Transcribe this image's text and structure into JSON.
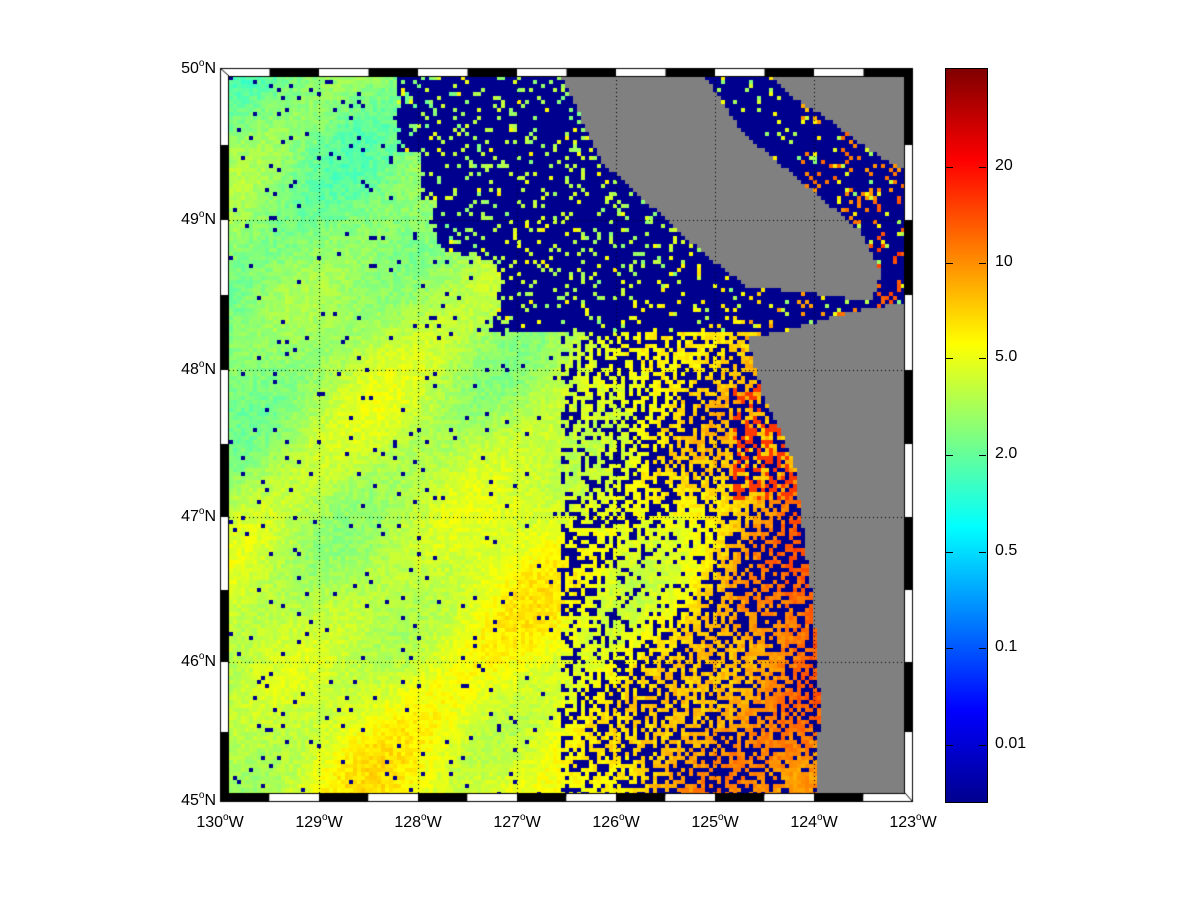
{
  "map": {
    "lat_labels": [
      {
        "deg": "50",
        "hemi": "N"
      },
      {
        "deg": "49",
        "hemi": "N"
      },
      {
        "deg": "48",
        "hemi": "N"
      },
      {
        "deg": "47",
        "hemi": "N"
      },
      {
        "deg": "46",
        "hemi": "N"
      },
      {
        "deg": "45",
        "hemi": "N"
      }
    ],
    "lon_labels": [
      {
        "deg": "130",
        "hemi": "W"
      },
      {
        "deg": "129",
        "hemi": "W"
      },
      {
        "deg": "128",
        "hemi": "W"
      },
      {
        "deg": "127",
        "hemi": "W"
      },
      {
        "deg": "126",
        "hemi": "W"
      },
      {
        "deg": "125",
        "hemi": "W"
      },
      {
        "deg": "124",
        "hemi": "W"
      },
      {
        "deg": "123",
        "hemi": "W"
      }
    ],
    "degree_symbol": "o",
    "lat_range": [
      45,
      50
    ],
    "lon_range": [
      -130,
      -123
    ],
    "land_color": "#808080",
    "no_data_color": "#00008f",
    "colormap": "jet",
    "grid": "dotted"
  },
  "colorbar": {
    "ticks": [
      "20",
      "10",
      "5.0",
      "2.0",
      "0.5",
      "0.1",
      "0.01"
    ]
  }
}
